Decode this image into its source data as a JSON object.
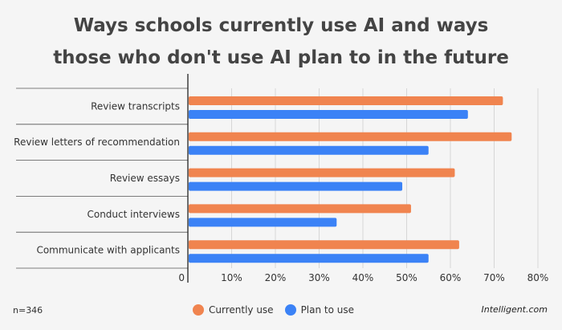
{
  "title_line1": "Ways schools currently use AI and ways",
  "title_line2": "those who don't use AI plan to in the future",
  "footer": {
    "sample": "n=346",
    "source": "Intelligent.com"
  },
  "chart_data": {
    "type": "bar",
    "orientation": "horizontal",
    "categories": [
      "Review transcripts",
      "Review letters of recommendation",
      "Review essays",
      "Conduct interviews",
      "Communicate with applicants"
    ],
    "series": [
      {
        "name": "Currently use",
        "color": "#f0844f",
        "values": [
          72,
          74,
          61,
          51,
          62
        ]
      },
      {
        "name": "Plan to use",
        "color": "#3b82f6",
        "values": [
          64,
          55,
          49,
          34,
          55
        ]
      }
    ],
    "xlim": [
      0,
      80
    ],
    "xticks": [
      "0",
      "10%",
      "20%",
      "30%",
      "40%",
      "50%",
      "60%",
      "70%",
      "80%"
    ],
    "grid": true,
    "legend_position": "bottom"
  }
}
